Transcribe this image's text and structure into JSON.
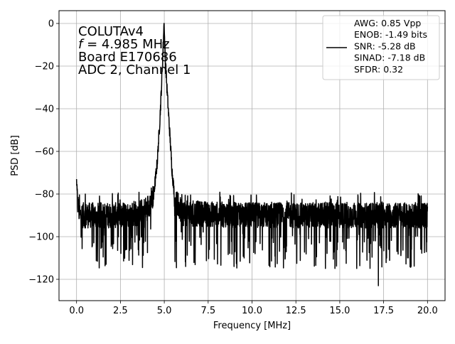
{
  "chart_data": {
    "type": "line",
    "xlabel": "Frequency [MHz]",
    "ylabel": "PSD [dB]",
    "xlim": [
      -1.0,
      21.0
    ],
    "ylim": [
      -130,
      6
    ],
    "xticks": [
      0.0,
      2.5,
      5.0,
      7.5,
      10.0,
      12.5,
      15.0,
      17.5,
      20.0
    ],
    "xtick_labels": [
      "0.0",
      "2.5",
      "5.0",
      "7.5",
      "10.0",
      "12.5",
      "15.0",
      "17.5",
      "20.0"
    ],
    "yticks": [
      0,
      -20,
      -40,
      -60,
      -80,
      -100,
      -120
    ],
    "ytick_labels": [
      "0",
      "−20",
      "−40",
      "−60",
      "−80",
      "−100",
      "−120"
    ],
    "grid": true,
    "legend_position": "upper-right",
    "annotation_lines": [
      "COLUTAv4",
      "f = 4.985 MHz",
      "Board E170686",
      "ADC 2, Channel 1"
    ],
    "annotation_f": {
      "italic": "f",
      "rest": " = 4.985 MHz"
    },
    "series": [
      {
        "name": "AWG: 0.85 Vpp\nENOB: -1.49 bits\nSNR: -5.28 dB\nSINAD: -7.18 dB\nSFDR: 0.32",
        "color": "#000000",
        "peak": {
          "x": 4.985,
          "y": 0.0
        },
        "noise_floor_range": [
          -115,
          -79
        ],
        "min_point": {
          "x": 17.2,
          "y": -123
        },
        "envelope": [
          [
            0.0,
            -73
          ],
          [
            0.05,
            -84
          ],
          [
            0.2,
            -90
          ],
          [
            1.0,
            -90
          ],
          [
            2.5,
            -90
          ],
          [
            3.5,
            -89
          ],
          [
            4.0,
            -87
          ],
          [
            4.4,
            -80
          ],
          [
            4.6,
            -65
          ],
          [
            4.75,
            -45
          ],
          [
            4.85,
            -28
          ],
          [
            4.93,
            -12
          ],
          [
            4.985,
            0
          ],
          [
            5.05,
            -15
          ],
          [
            5.15,
            -30
          ],
          [
            5.3,
            -50
          ],
          [
            5.45,
            -70
          ],
          [
            5.6,
            -82
          ],
          [
            6.0,
            -89
          ],
          [
            10.0,
            -90
          ],
          [
            15.0,
            -90
          ],
          [
            20.0,
            -90
          ]
        ]
      }
    ],
    "legend_lines": [
      "AWG: 0.85 Vpp",
      "ENOB: -1.49 bits",
      "SNR: -5.28 dB",
      "SINAD: -7.18 dB",
      "SFDR: 0.32"
    ]
  }
}
